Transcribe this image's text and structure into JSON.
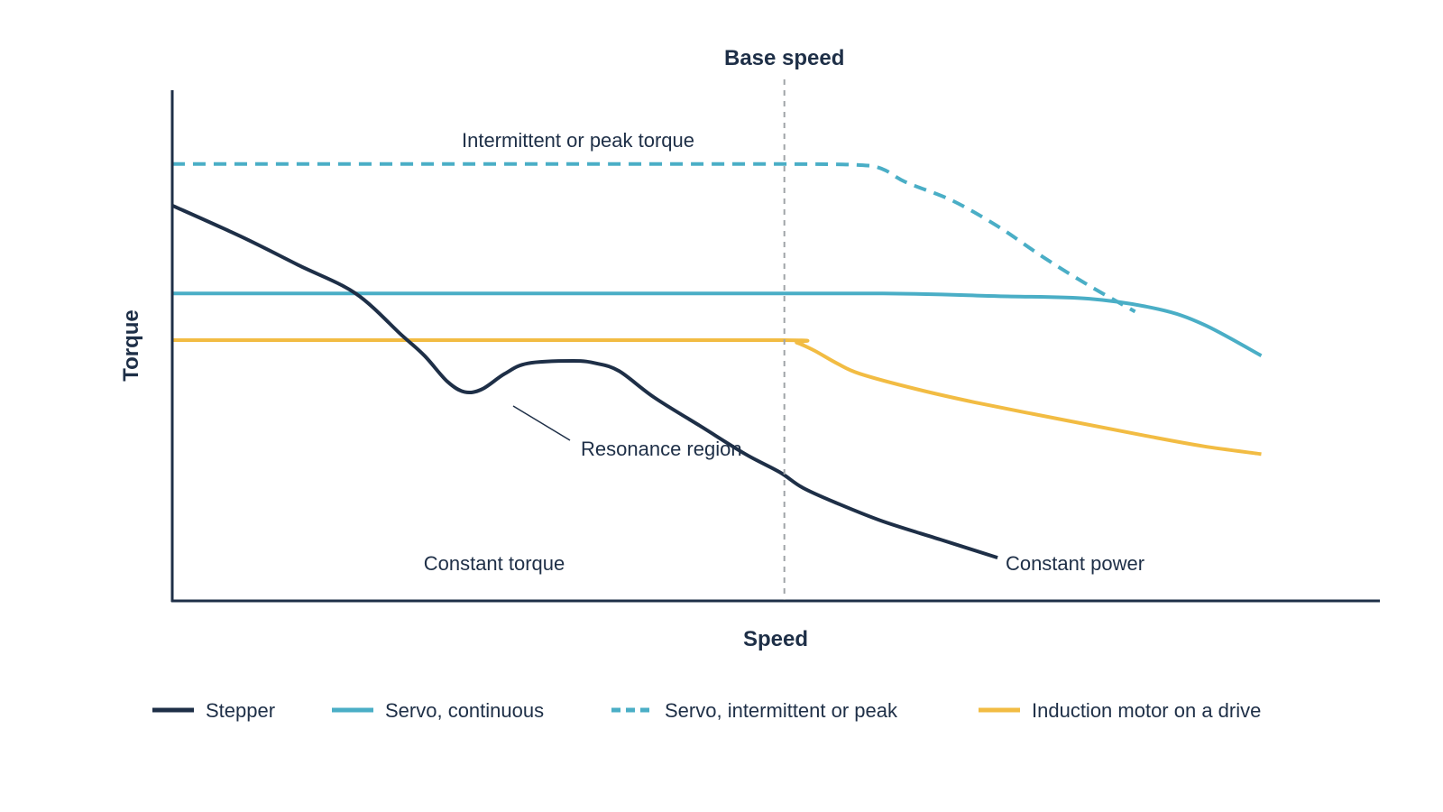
{
  "chart_data": {
    "type": "line",
    "title": "",
    "xlabel": "Speed",
    "ylabel": "Torque",
    "x_range": [
      0,
      100
    ],
    "y_range": [
      0,
      100
    ],
    "grid": false,
    "legend_placement": "bottom",
    "series": [
      {
        "name": "Stepper",
        "style": "solid",
        "color": "#1e2f47",
        "points": [
          [
            0,
            76
          ],
          [
            6,
            70
          ],
          [
            11,
            64.5
          ],
          [
            16,
            59
          ],
          [
            20,
            51
          ],
          [
            22,
            47
          ],
          [
            24,
            42
          ],
          [
            25.5,
            40
          ],
          [
            27,
            40.5
          ],
          [
            29,
            43.5
          ],
          [
            31,
            45.5
          ],
          [
            35,
            46
          ],
          [
            37,
            45.5
          ],
          [
            39,
            44
          ],
          [
            42,
            39
          ],
          [
            46,
            33.5
          ],
          [
            50,
            28
          ],
          [
            53,
            24.5
          ],
          [
            55,
            21.5
          ],
          [
            58,
            18.5
          ],
          [
            62,
            15
          ],
          [
            67,
            11.5
          ],
          [
            72,
            8
          ]
        ]
      },
      {
        "name": "Servo, continuous",
        "style": "solid",
        "color": "#4aaec6",
        "points": [
          [
            0,
            59
          ],
          [
            40,
            59
          ],
          [
            62,
            59
          ],
          [
            72,
            58.5
          ],
          [
            80,
            58
          ],
          [
            86,
            56
          ],
          [
            90,
            53
          ],
          [
            95,
            47
          ]
        ]
      },
      {
        "name": "Servo, intermittent or peak",
        "style": "dashed",
        "color": "#4aaec6",
        "points": [
          [
            0,
            84
          ],
          [
            30,
            84
          ],
          [
            53.4,
            84
          ],
          [
            60,
            83.8
          ],
          [
            62,
            83
          ],
          [
            64,
            80.5
          ],
          [
            68,
            77
          ],
          [
            72,
            72
          ],
          [
            76,
            66
          ],
          [
            80,
            60.5
          ],
          [
            84,
            55.5
          ]
        ]
      },
      {
        "name": "Induction motor on a drive",
        "style": "solid",
        "color": "#f2bc43",
        "points": [
          [
            0,
            50
          ],
          [
            30,
            50
          ],
          [
            53.4,
            50
          ],
          [
            54.5,
            49.5
          ],
          [
            56,
            48
          ],
          [
            58,
            45.5
          ],
          [
            60,
            43.5
          ],
          [
            65,
            40.5
          ],
          [
            70,
            38
          ],
          [
            78,
            34.5
          ],
          [
            85,
            31.5
          ],
          [
            90,
            29.5
          ],
          [
            95,
            28
          ]
        ]
      }
    ],
    "reference_line": {
      "x": 53.4,
      "label": "Base speed",
      "style": "dashed"
    },
    "annotations": [
      {
        "text": "Intermittent or peak torque"
      },
      {
        "text": "Resonance region"
      },
      {
        "text": "Constant torque"
      },
      {
        "text": "Constant power"
      }
    ],
    "axis_color": "#1e2f47",
    "reference_color": "#a0a4a8"
  }
}
